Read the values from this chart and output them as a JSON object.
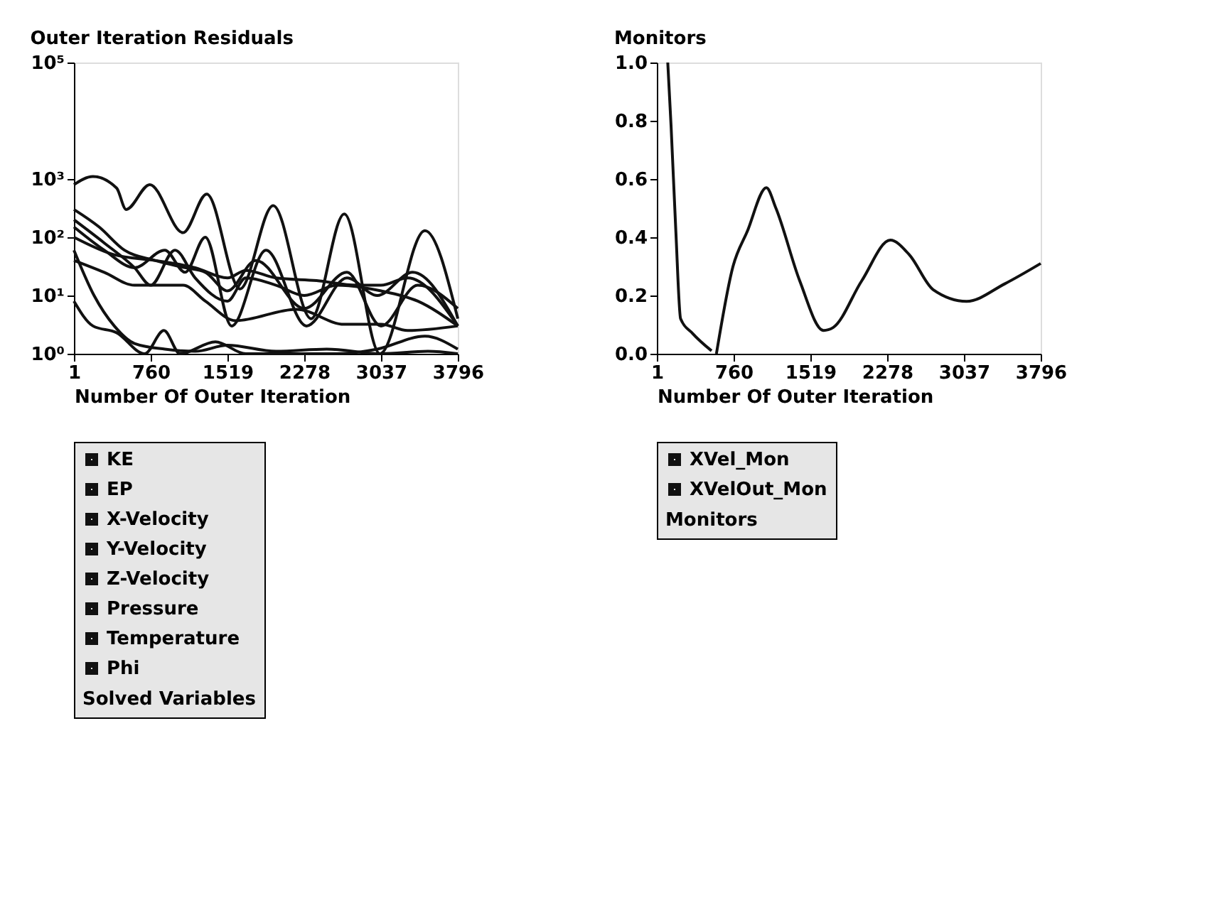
{
  "chart_data": [
    {
      "type": "line",
      "title": "Outer Iteration Residuals",
      "xlabel": "Number Of Outer Iteration",
      "legend": "bottom",
      "legend_title": "Solved Variables",
      "log": "y",
      "xlim": [
        1,
        3796
      ],
      "xticks": [
        1,
        760,
        1519,
        2278,
        3037,
        3796
      ],
      "ylim": [
        1,
        100000
      ],
      "yticks": [
        {
          "value": 1,
          "label": "10⁰"
        },
        {
          "value": 10,
          "label": "10¹"
        },
        {
          "value": 100,
          "label": "10²"
        },
        {
          "value": 1000,
          "label": "10³"
        },
        {
          "value": 100000,
          "label": "10⁵"
        }
      ],
      "series": [
        {
          "name": "KE",
          "color": "#111111",
          "x": [
            1,
            189,
            423,
            517,
            751,
            1080,
            1314,
            1643,
            1971,
            2346,
            2674,
            3026,
            3471,
            3796
          ],
          "values": [
            800,
            1100,
            700,
            300,
            800,
            120,
            550,
            13,
            350,
            4,
            250,
            1,
            130,
            4
          ]
        },
        {
          "name": "EP",
          "color": "#111111",
          "x": [
            1,
            300,
            600,
            900,
            1100,
            1300,
            1560,
            1900,
            2300,
            2700,
            3000,
            3350,
            3796
          ],
          "values": [
            150,
            60,
            30,
            60,
            25,
            100,
            3,
            60,
            3,
            20,
            10,
            25,
            3
          ]
        },
        {
          "name": "X-Velocity",
          "color": "#111111",
          "x": [
            1,
            300,
            600,
            1080,
            1300,
            1600,
            2200,
            2674,
            3037,
            3300,
            3796
          ],
          "values": [
            40,
            25,
            15,
            15,
            8,
            3.7,
            5.8,
            3.2,
            3.2,
            2.5,
            3
          ]
        },
        {
          "name": "Y-Velocity",
          "color": "#111111",
          "x": [
            1,
            189,
            423,
            700,
            891,
            1050,
            1400,
            1700,
            2600,
            3000,
            3471,
            3796
          ],
          "values": [
            8,
            3,
            2.3,
            1,
            2.5,
            1,
            1.6,
            1,
            1,
            1.2,
            2,
            1.2
          ]
        },
        {
          "name": "Z-Velocity",
          "color": "#111111",
          "x": [
            1,
            300,
            600,
            760,
            1000,
            1200,
            1519,
            1700,
            2000,
            2278,
            2600,
            3037,
            3400,
            3796
          ],
          "values": [
            200,
            80,
            30,
            15,
            60,
            20,
            8,
            20,
            15,
            10,
            15,
            12,
            8,
            3
          ]
        },
        {
          "name": "Pressure",
          "color": "#111111",
          "x": [
            1,
            400,
            800,
            1200,
            1519,
            1700,
            2000,
            2400,
            2800,
            3037,
            3300,
            3796
          ],
          "values": [
            100,
            50,
            40,
            30,
            20,
            27,
            20,
            18,
            15,
            15,
            20,
            3
          ]
        },
        {
          "name": "Temperature",
          "color": "#111111",
          "x": [
            1,
            250,
            500,
            800,
            1100,
            1300,
            1519,
            1800,
            2278,
            2700,
            3037,
            3400,
            3796
          ],
          "values": [
            300,
            150,
            60,
            40,
            30,
            25,
            12,
            40,
            6,
            25,
            3,
            15,
            6
          ]
        },
        {
          "name": "Phi",
          "color": "#111111",
          "x": [
            1,
            200,
            400,
            600,
            900,
            1200,
            1519,
            2000,
            2500,
            3037,
            3500,
            3796
          ],
          "values": [
            60,
            10,
            3,
            1.5,
            1.2,
            1.1,
            1.4,
            1.1,
            1.2,
            1,
            1.1,
            1
          ]
        }
      ]
    },
    {
      "type": "line",
      "title": "Monitors",
      "xlabel": "Number Of Outer Iteration",
      "legend": "bottom",
      "legend_title": "Monitors",
      "xlim": [
        1,
        3796
      ],
      "xticks": [
        1,
        760,
        1519,
        2278,
        3037,
        3796
      ],
      "ylim": [
        0,
        1
      ],
      "yticks": [
        {
          "value": 0,
          "label": "0.0"
        },
        0.2,
        0.4,
        0.6,
        0.8,
        {
          "value": 1,
          "label": "1.0"
        }
      ],
      "series": [
        {
          "name": "XVel_Mon",
          "color": "#111111",
          "x": [
            590,
            754,
            895,
            1084,
            1178,
            1414,
            1649,
            1744,
            2026,
            2309,
            2497,
            2733,
            3063,
            3440,
            3796
          ],
          "values": [
            0,
            0.3,
            0.42,
            0.57,
            0.5,
            0.25,
            0.08,
            0.09,
            0.25,
            0.39,
            0.34,
            0.22,
            0.18,
            0.24,
            0.31
          ]
        },
        {
          "name": "XVelOut_Mon",
          "color": "#111111",
          "x": [
            109,
            142,
            189,
            236,
            354,
            542
          ],
          "values": [
            1,
            0.78,
            0.42,
            0.12,
            0.07,
            0.01
          ]
        }
      ]
    }
  ]
}
